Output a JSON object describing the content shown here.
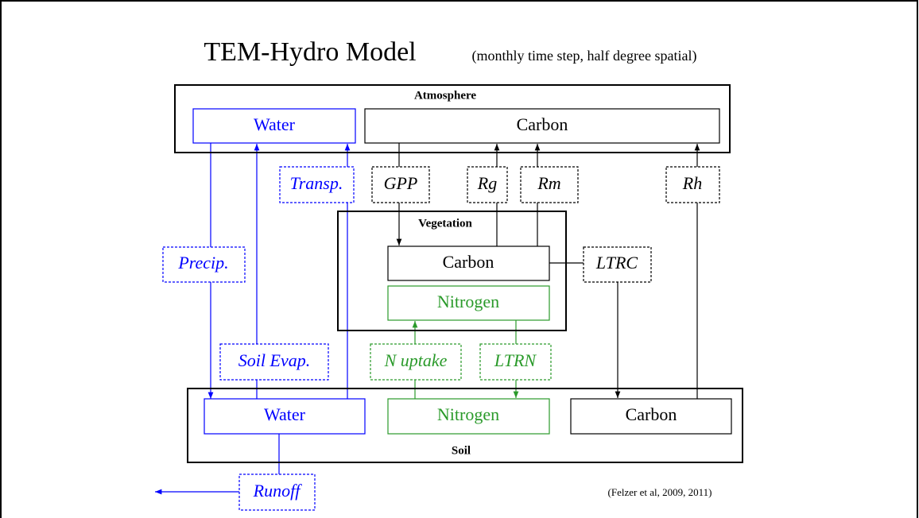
{
  "title": "TEM-Hydro Model",
  "subtitle": "(monthly time step, half degree spatial)",
  "atmosphere": {
    "label": "Atmosphere",
    "water": "Water",
    "carbon": "Carbon"
  },
  "vegetation": {
    "label": "Vegetation",
    "carbon": "Carbon",
    "nitrogen": "Nitrogen"
  },
  "soil": {
    "label": "Soil",
    "water": "Water",
    "nitrogen": "Nitrogen",
    "carbon": "Carbon"
  },
  "fluxes": {
    "transp": "Transp.",
    "gpp": "GPP",
    "rg": "Rg",
    "rm": "Rm",
    "rh": "Rh",
    "precip": "Precip.",
    "ltrc": "LTRC",
    "soil_evap": "Soil Evap.",
    "n_uptake": "N uptake",
    "ltrn": "LTRN",
    "runoff": "Runoff"
  },
  "citation": "(Felzer et al, 2009, 2011)"
}
